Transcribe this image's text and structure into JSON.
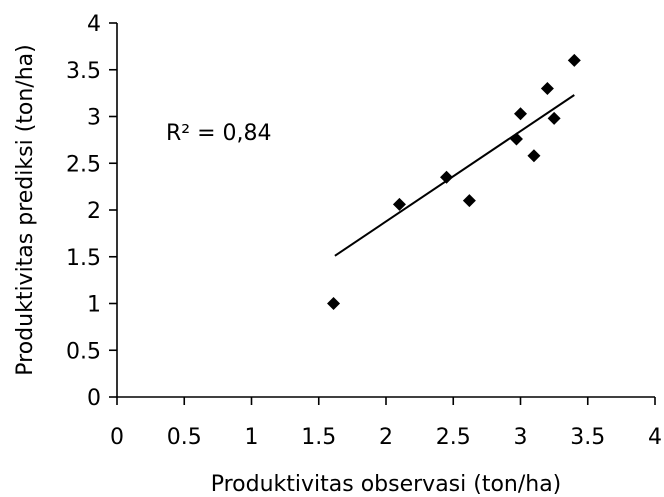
{
  "chart_data": {
    "type": "scatter",
    "xlabel": "Produktivitas observasi (ton/ha)",
    "ylabel": "Produktivitas prediksi (ton/ha)",
    "xlim": [
      0,
      4
    ],
    "ylim": [
      0,
      4
    ],
    "xticks": [
      0,
      0.5,
      1,
      1.5,
      2,
      2.5,
      3,
      3.5,
      4
    ],
    "yticks": [
      0,
      0.5,
      1,
      1.5,
      2,
      2.5,
      3,
      3.5,
      4
    ],
    "xtick_labels": [
      "0",
      "0.5",
      "1",
      "1.5",
      "2",
      "2.5",
      "3",
      "3.5",
      "4"
    ],
    "ytick_labels": [
      "0",
      "0.5",
      "1",
      "1.5",
      "2",
      "2.5",
      "3",
      "3.5",
      "4"
    ],
    "grid": false,
    "marker": "diamond",
    "color": "#000000",
    "series": [
      {
        "points": [
          {
            "x": 1.61,
            "y": 1.0
          },
          {
            "x": 2.1,
            "y": 2.06
          },
          {
            "x": 2.45,
            "y": 2.35
          },
          {
            "x": 2.62,
            "y": 2.1
          },
          {
            "x": 2.97,
            "y": 2.76
          },
          {
            "x": 3.0,
            "y": 3.03
          },
          {
            "x": 3.1,
            "y": 2.58
          },
          {
            "x": 3.2,
            "y": 3.3
          },
          {
            "x": 3.25,
            "y": 2.98
          },
          {
            "x": 3.4,
            "y": 3.6
          }
        ]
      }
    ],
    "trendline": {
      "type": "linear",
      "from": {
        "x": 1.62,
        "y": 1.51
      },
      "to": {
        "x": 3.4,
        "y": 3.23
      }
    },
    "annotations": [
      {
        "text": "R² = 0,84"
      }
    ]
  }
}
